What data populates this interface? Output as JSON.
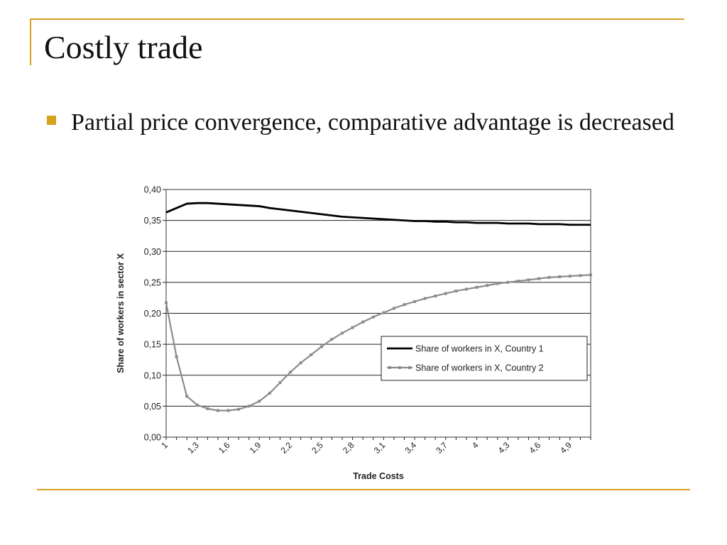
{
  "slide": {
    "title": "Costly trade",
    "bullet": "Partial price convergence, comparative advantage is decreased"
  },
  "colors": {
    "accent": "#d6a21e",
    "series1": "#000000",
    "series2": "#8c8c8c"
  },
  "chart_data": {
    "type": "line",
    "title": "",
    "xlabel": "Trade Costs",
    "ylabel": "Share of workers in sector X",
    "ylim": [
      0,
      0.4
    ],
    "xlim": [
      1,
      5.1
    ],
    "grid": "horizontal",
    "legend_position": "right-middle",
    "y_tick_labels": [
      "0,00",
      "0,05",
      "0,10",
      "0,15",
      "0,20",
      "0,25",
      "0,30",
      "0,35",
      "0,40"
    ],
    "x_tick_labels": [
      "1",
      "1,3",
      "1,6",
      "1,9",
      "2,2",
      "2,5",
      "2,8",
      "3,1",
      "3,4",
      "3,7",
      "4",
      "4,3",
      "4,6",
      "4,9"
    ],
    "x": [
      1.0,
      1.1,
      1.2,
      1.3,
      1.4,
      1.5,
      1.6,
      1.7,
      1.8,
      1.9,
      2.0,
      2.1,
      2.2,
      2.3,
      2.4,
      2.5,
      2.6,
      2.7,
      2.8,
      2.9,
      3.0,
      3.1,
      3.2,
      3.3,
      3.4,
      3.5,
      3.6,
      3.7,
      3.8,
      3.9,
      4.0,
      4.1,
      4.2,
      4.3,
      4.4,
      4.5,
      4.6,
      4.7,
      4.8,
      4.9,
      5.0,
      5.1
    ],
    "series": [
      {
        "name": "Share of workers in X, Country 1",
        "values": [
          0.363,
          0.37,
          0.377,
          0.378,
          0.378,
          0.377,
          0.376,
          0.375,
          0.374,
          0.373,
          0.37,
          0.368,
          0.366,
          0.364,
          0.362,
          0.36,
          0.358,
          0.356,
          0.355,
          0.354,
          0.353,
          0.352,
          0.351,
          0.35,
          0.349,
          0.349,
          0.348,
          0.348,
          0.347,
          0.347,
          0.346,
          0.346,
          0.346,
          0.345,
          0.345,
          0.345,
          0.344,
          0.344,
          0.344,
          0.343,
          0.343,
          0.343
        ]
      },
      {
        "name": "Share of workers in X, Country 2",
        "values": [
          0.217,
          0.13,
          0.066,
          0.052,
          0.046,
          0.043,
          0.043,
          0.045,
          0.05,
          0.058,
          0.071,
          0.088,
          0.105,
          0.12,
          0.133,
          0.146,
          0.158,
          0.168,
          0.177,
          0.186,
          0.194,
          0.201,
          0.208,
          0.214,
          0.219,
          0.224,
          0.228,
          0.232,
          0.236,
          0.239,
          0.242,
          0.245,
          0.248,
          0.25,
          0.252,
          0.254,
          0.256,
          0.258,
          0.259,
          0.26,
          0.261,
          0.262
        ]
      }
    ]
  }
}
